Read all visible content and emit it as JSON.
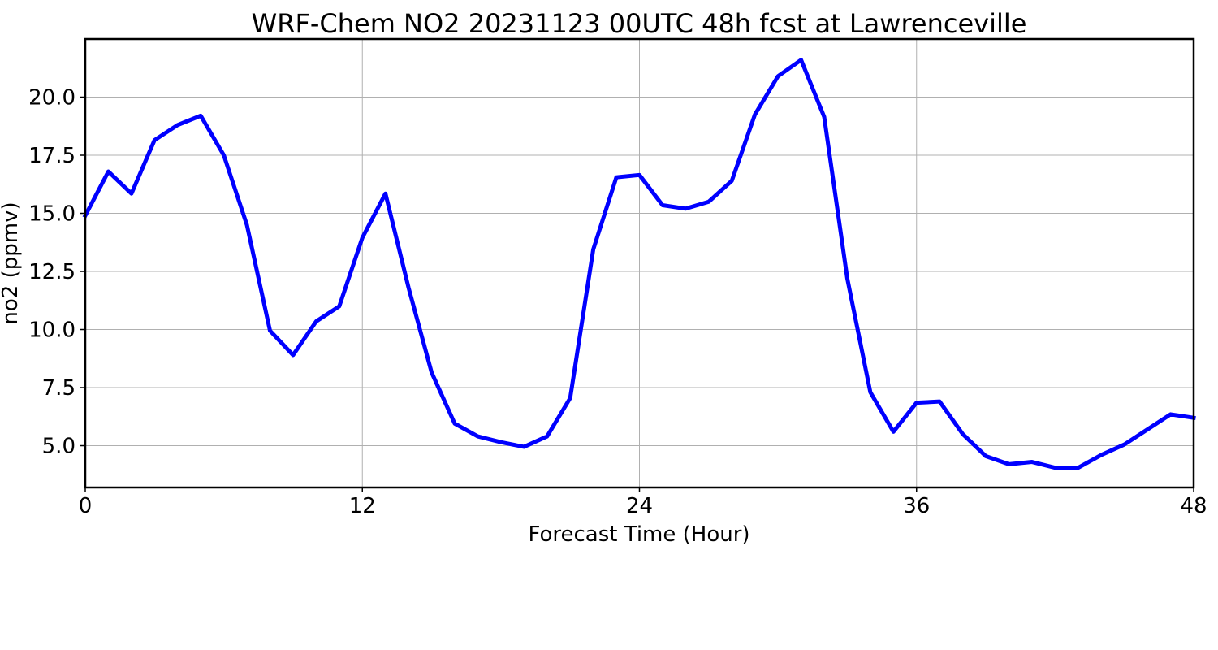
{
  "chart_data": {
    "type": "line",
    "title": "WRF-Chem NO2  20231123 00UTC 48h fcst at Lawrenceville",
    "xlabel": "Forecast Time (Hour)",
    "ylabel": "no2  (ppmv)",
    "xlim": [
      0,
      48
    ],
    "ylim": [
      3.2,
      22.5
    ],
    "xticks": [
      0,
      12,
      24,
      36,
      48
    ],
    "yticks": [
      5.0,
      7.5,
      10.0,
      12.5,
      15.0,
      17.5,
      20.0
    ],
    "grid": true,
    "line_color": "#0000ff",
    "series": [
      {
        "x": [
          0,
          1,
          2,
          3,
          4,
          5,
          6,
          7,
          8,
          9,
          10,
          11,
          12,
          13,
          14,
          15,
          16,
          17,
          18,
          19,
          20,
          21,
          22,
          23,
          24,
          25,
          26,
          27,
          28,
          29,
          30,
          31,
          32,
          33,
          34,
          35,
          36,
          37,
          38,
          39,
          40,
          41,
          42,
          43,
          44,
          45,
          46,
          47,
          48
        ],
        "values": [
          14.9,
          16.8,
          15.85,
          18.15,
          18.8,
          19.2,
          17.5,
          14.5,
          9.95,
          8.9,
          10.35,
          11.0,
          13.95,
          15.85,
          11.8,
          8.15,
          5.95,
          5.4,
          5.15,
          4.95,
          5.4,
          7.05,
          13.45,
          16.55,
          16.65,
          15.35,
          15.2,
          15.5,
          16.4,
          19.25,
          20.9,
          21.6,
          19.15,
          12.2,
          7.3,
          5.6,
          6.85,
          6.9,
          5.5,
          4.55,
          4.2,
          4.3,
          4.05,
          4.05,
          4.6,
          5.05,
          5.7,
          6.35,
          6.2
        ]
      }
    ]
  }
}
